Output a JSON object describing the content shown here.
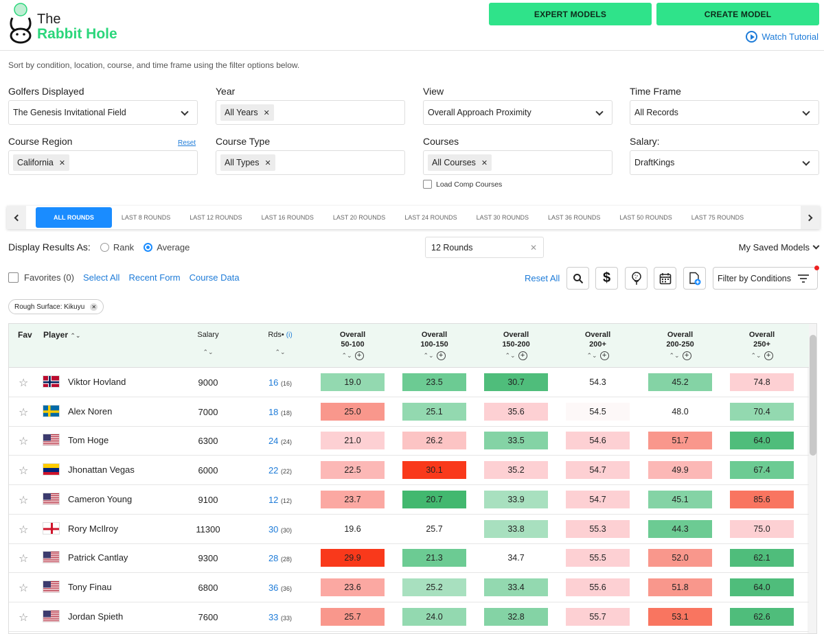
{
  "brand": {
    "the": "The",
    "name": "Rabbit Hole"
  },
  "header": {
    "expert_models": "EXPERT MODELS",
    "create_model": "CREATE MODEL",
    "watch_tutorial": "Watch Tutorial"
  },
  "subtitle": "Sort by condition, location, course, and time frame using the filter options below.",
  "filters": {
    "golfers_label": "Golfers Displayed",
    "golfers_value": "The Genesis Invitational Field",
    "year_label": "Year",
    "year_chip": "All Years",
    "view_label": "View",
    "view_value": "Overall Approach Proximity",
    "timeframe_label": "Time Frame",
    "timeframe_value": "All Records",
    "region_label": "Course Region",
    "region_reset": "Reset",
    "region_chip": "California",
    "type_label": "Course Type",
    "type_chip": "All Types",
    "courses_label": "Courses",
    "courses_chip": "All Courses",
    "salary_label": "Salary:",
    "salary_value": "DraftKings",
    "load_comp": "Load Comp Courses"
  },
  "tabs": [
    "ALL ROUNDS",
    "LAST 8 ROUNDS",
    "LAST 12 ROUNDS",
    "LAST 16 ROUNDS",
    "LAST 20 ROUNDS",
    "LAST 24 ROUNDS",
    "LAST 30 ROUNDS",
    "LAST 36 ROUNDS",
    "LAST 50 ROUNDS",
    "LAST 75 ROUNDS"
  ],
  "display": {
    "label": "Display Results As:",
    "rank": "Rank",
    "average": "Average",
    "rounds_value": "12 Rounds",
    "saved_models": "My Saved Models"
  },
  "favrow": {
    "favorites": "Favorites (0)",
    "select_all": "Select All",
    "recent_form": "Recent Form",
    "course_data": "Course Data",
    "reset_all": "Reset All",
    "filter_conditions": "Filter by Conditions"
  },
  "rough_chip": "Rough Surface: Kikuyu",
  "table": {
    "headers": {
      "fav": "Fav",
      "player": "Player",
      "salary": "Salary",
      "rds": "Rds•",
      "rds_info": "(i)"
    },
    "stat_cols": [
      {
        "top": "Overall",
        "bottom": "50-100"
      },
      {
        "top": "Overall",
        "bottom": "100-150"
      },
      {
        "top": "Overall",
        "bottom": "150-200"
      },
      {
        "top": "Overall",
        "bottom": "200+"
      },
      {
        "top": "Overall",
        "bottom": "200-250"
      },
      {
        "top": "Overall",
        "bottom": "250+"
      }
    ],
    "rows": [
      {
        "name": "Viktor Hovland",
        "flag": "norway",
        "salary": "9000",
        "rds": "16",
        "rds_sub": "(16)",
        "vals": [
          "19.0",
          "23.5",
          "30.7",
          "54.3",
          "45.2",
          "74.8"
        ],
        "colors": [
          "#93d9b0",
          "#6ccb93",
          "#4fbd7b",
          "#ffffff",
          "#84d3a5",
          "#fdd0d3"
        ]
      },
      {
        "name": "Alex Noren",
        "flag": "sweden",
        "salary": "7000",
        "rds": "18",
        "rds_sub": "(18)",
        "vals": [
          "25.0",
          "25.1",
          "35.6",
          "54.5",
          "48.0",
          "70.4"
        ],
        "colors": [
          "#f9978c",
          "#93d9b0",
          "#fdd0d3",
          "#fdf8f8",
          "#ffffff",
          "#93d9b0"
        ]
      },
      {
        "name": "Tom Hoge",
        "flag": "usa",
        "salary": "6300",
        "rds": "24",
        "rds_sub": "(24)",
        "vals": [
          "21.0",
          "26.2",
          "33.5",
          "54.6",
          "51.7",
          "64.0"
        ],
        "colors": [
          "#fdd0d3",
          "#fcc4c4",
          "#84d3a5",
          "#fdd0d3",
          "#f9978c",
          "#4fbd7b"
        ]
      },
      {
        "name": "Jhonattan Vegas",
        "flag": "venezuela",
        "salary": "6000",
        "rds": "22",
        "rds_sub": "(22)",
        "vals": [
          "22.5",
          "30.1",
          "35.2",
          "54.7",
          "49.9",
          "67.4"
        ],
        "colors": [
          "#fcb8b6",
          "#f9391b",
          "#fdd0d3",
          "#fdd0d3",
          "#fcb8b6",
          "#6ccb93"
        ]
      },
      {
        "name": "Cameron Young",
        "flag": "usa",
        "salary": "9100",
        "rds": "12",
        "rds_sub": "(12)",
        "vals": [
          "23.7",
          "20.7",
          "33.9",
          "54.7",
          "45.1",
          "85.6"
        ],
        "colors": [
          "#fba8a2",
          "#42b86f",
          "#a8e0bf",
          "#fdd0d3",
          "#84d3a5",
          "#f97560"
        ]
      },
      {
        "name": "Rory McIlroy",
        "flag": "nireland",
        "salary": "11300",
        "rds": "30",
        "rds_sub": "(30)",
        "vals": [
          "19.6",
          "25.7",
          "33.8",
          "55.3",
          "44.3",
          "75.0"
        ],
        "colors": [
          "#ffffff",
          "#ffffff",
          "#a8e0bf",
          "#fdd0d3",
          "#6ccb93",
          "#fdd0d3"
        ]
      },
      {
        "name": "Patrick Cantlay",
        "flag": "usa",
        "salary": "9300",
        "rds": "28",
        "rds_sub": "(28)",
        "vals": [
          "29.9",
          "21.3",
          "34.7",
          "55.5",
          "52.0",
          "62.1"
        ],
        "colors": [
          "#f9391b",
          "#6ccb93",
          "#ffffff",
          "#fdd0d3",
          "#f9978c",
          "#4fbd7b"
        ]
      },
      {
        "name": "Tony Finau",
        "flag": "usa",
        "salary": "6800",
        "rds": "36",
        "rds_sub": "(36)",
        "vals": [
          "23.6",
          "25.2",
          "33.4",
          "55.6",
          "51.8",
          "64.0"
        ],
        "colors": [
          "#fba8a2",
          "#a8e0bf",
          "#93d9b0",
          "#fdd0d3",
          "#f9978c",
          "#4fbd7b"
        ]
      },
      {
        "name": "Jordan Spieth",
        "flag": "usa",
        "salary": "7600",
        "rds": "33",
        "rds_sub": "(33)",
        "vals": [
          "25.7",
          "24.0",
          "32.8",
          "55.7",
          "53.1",
          "62.6"
        ],
        "colors": [
          "#f9978c",
          "#93d9b0",
          "#84d3a5",
          "#fdd0d3",
          "#f97560",
          "#4fbd7b"
        ]
      }
    ]
  }
}
